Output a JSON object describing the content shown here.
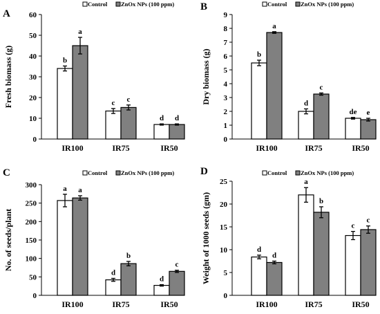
{
  "colors": {
    "control": "#ffffff",
    "znox": "#808080",
    "stroke": "#000000"
  },
  "chart_data": [
    {
      "type": "bar",
      "panel": "A",
      "ylabel": "Fresh biomass (g)",
      "xlabel": "",
      "categories": [
        "IR100",
        "IR75",
        "IR50"
      ],
      "ylim": [
        0,
        60
      ],
      "yticks": [
        0,
        10,
        20,
        30,
        40,
        50,
        60
      ],
      "legend_position": "top",
      "series": [
        {
          "name": "Control",
          "values": [
            34,
            13.5,
            7
          ],
          "errors": [
            1.2,
            1.2,
            0.3
          ],
          "labels": [
            "b",
            "c",
            "d"
          ]
        },
        {
          "name": "ZnOx NPs (100 ppm)",
          "values": [
            45,
            15.2,
            7
          ],
          "errors": [
            4,
            1.2,
            0.3
          ],
          "labels": [
            "a",
            "c",
            "d"
          ]
        }
      ]
    },
    {
      "type": "bar",
      "panel": "B",
      "ylabel": "Dry biomass (g)",
      "xlabel": "",
      "categories": [
        "IR100",
        "IR75",
        "IR50"
      ],
      "ylim": [
        0,
        9
      ],
      "yticks": [
        0,
        1,
        2,
        3,
        4,
        5,
        6,
        7,
        8,
        9
      ],
      "legend_position": "top",
      "series": [
        {
          "name": "Control",
          "values": [
            5.5,
            2,
            1.5
          ],
          "errors": [
            0.2,
            0.18,
            0.06
          ],
          "labels": [
            "b",
            "d",
            "de"
          ]
        },
        {
          "name": "ZnOx NPs (100 ppm)",
          "values": [
            7.7,
            3.25,
            1.4
          ],
          "errors": [
            0.06,
            0.08,
            0.1
          ],
          "labels": [
            "a",
            "c",
            "e"
          ]
        }
      ]
    },
    {
      "type": "bar",
      "panel": "C",
      "ylabel": "No. of seeds/plant",
      "xlabel": "",
      "categories": [
        "IR100",
        "IR75",
        "IR50"
      ],
      "ylim": [
        0,
        300
      ],
      "yticks": [
        0,
        50,
        100,
        150,
        200,
        250,
        300
      ],
      "legend_position": "top",
      "series": [
        {
          "name": "Control",
          "values": [
            257,
            42,
            27
          ],
          "errors": [
            17,
            4,
            2
          ],
          "labels": [
            "a",
            "d",
            "d"
          ]
        },
        {
          "name": "ZnOx NPs (100 ppm)",
          "values": [
            264,
            86,
            65
          ],
          "errors": [
            6,
            6,
            3
          ],
          "labels": [
            "a",
            "b",
            "c"
          ]
        }
      ]
    },
    {
      "type": "bar",
      "panel": "D",
      "ylabel": "Weight of 1000 seeds (gm)",
      "xlabel": "",
      "categories": [
        "IR100",
        "IR75",
        "IR50"
      ],
      "ylim": [
        0,
        25
      ],
      "yticks": [
        0,
        5,
        10,
        15,
        20,
        25
      ],
      "legend_position": "top",
      "series": [
        {
          "name": "Control",
          "values": [
            8.4,
            22,
            13.1
          ],
          "errors": [
            0.4,
            1.6,
            0.9
          ],
          "labels": [
            "d",
            "a",
            "c"
          ]
        },
        {
          "name": "ZnOx NPs (100 ppm)",
          "values": [
            7.2,
            18.2,
            14.4
          ],
          "errors": [
            0.3,
            1.2,
            0.8
          ],
          "labels": [
            "d",
            "b",
            "c"
          ]
        }
      ]
    }
  ]
}
